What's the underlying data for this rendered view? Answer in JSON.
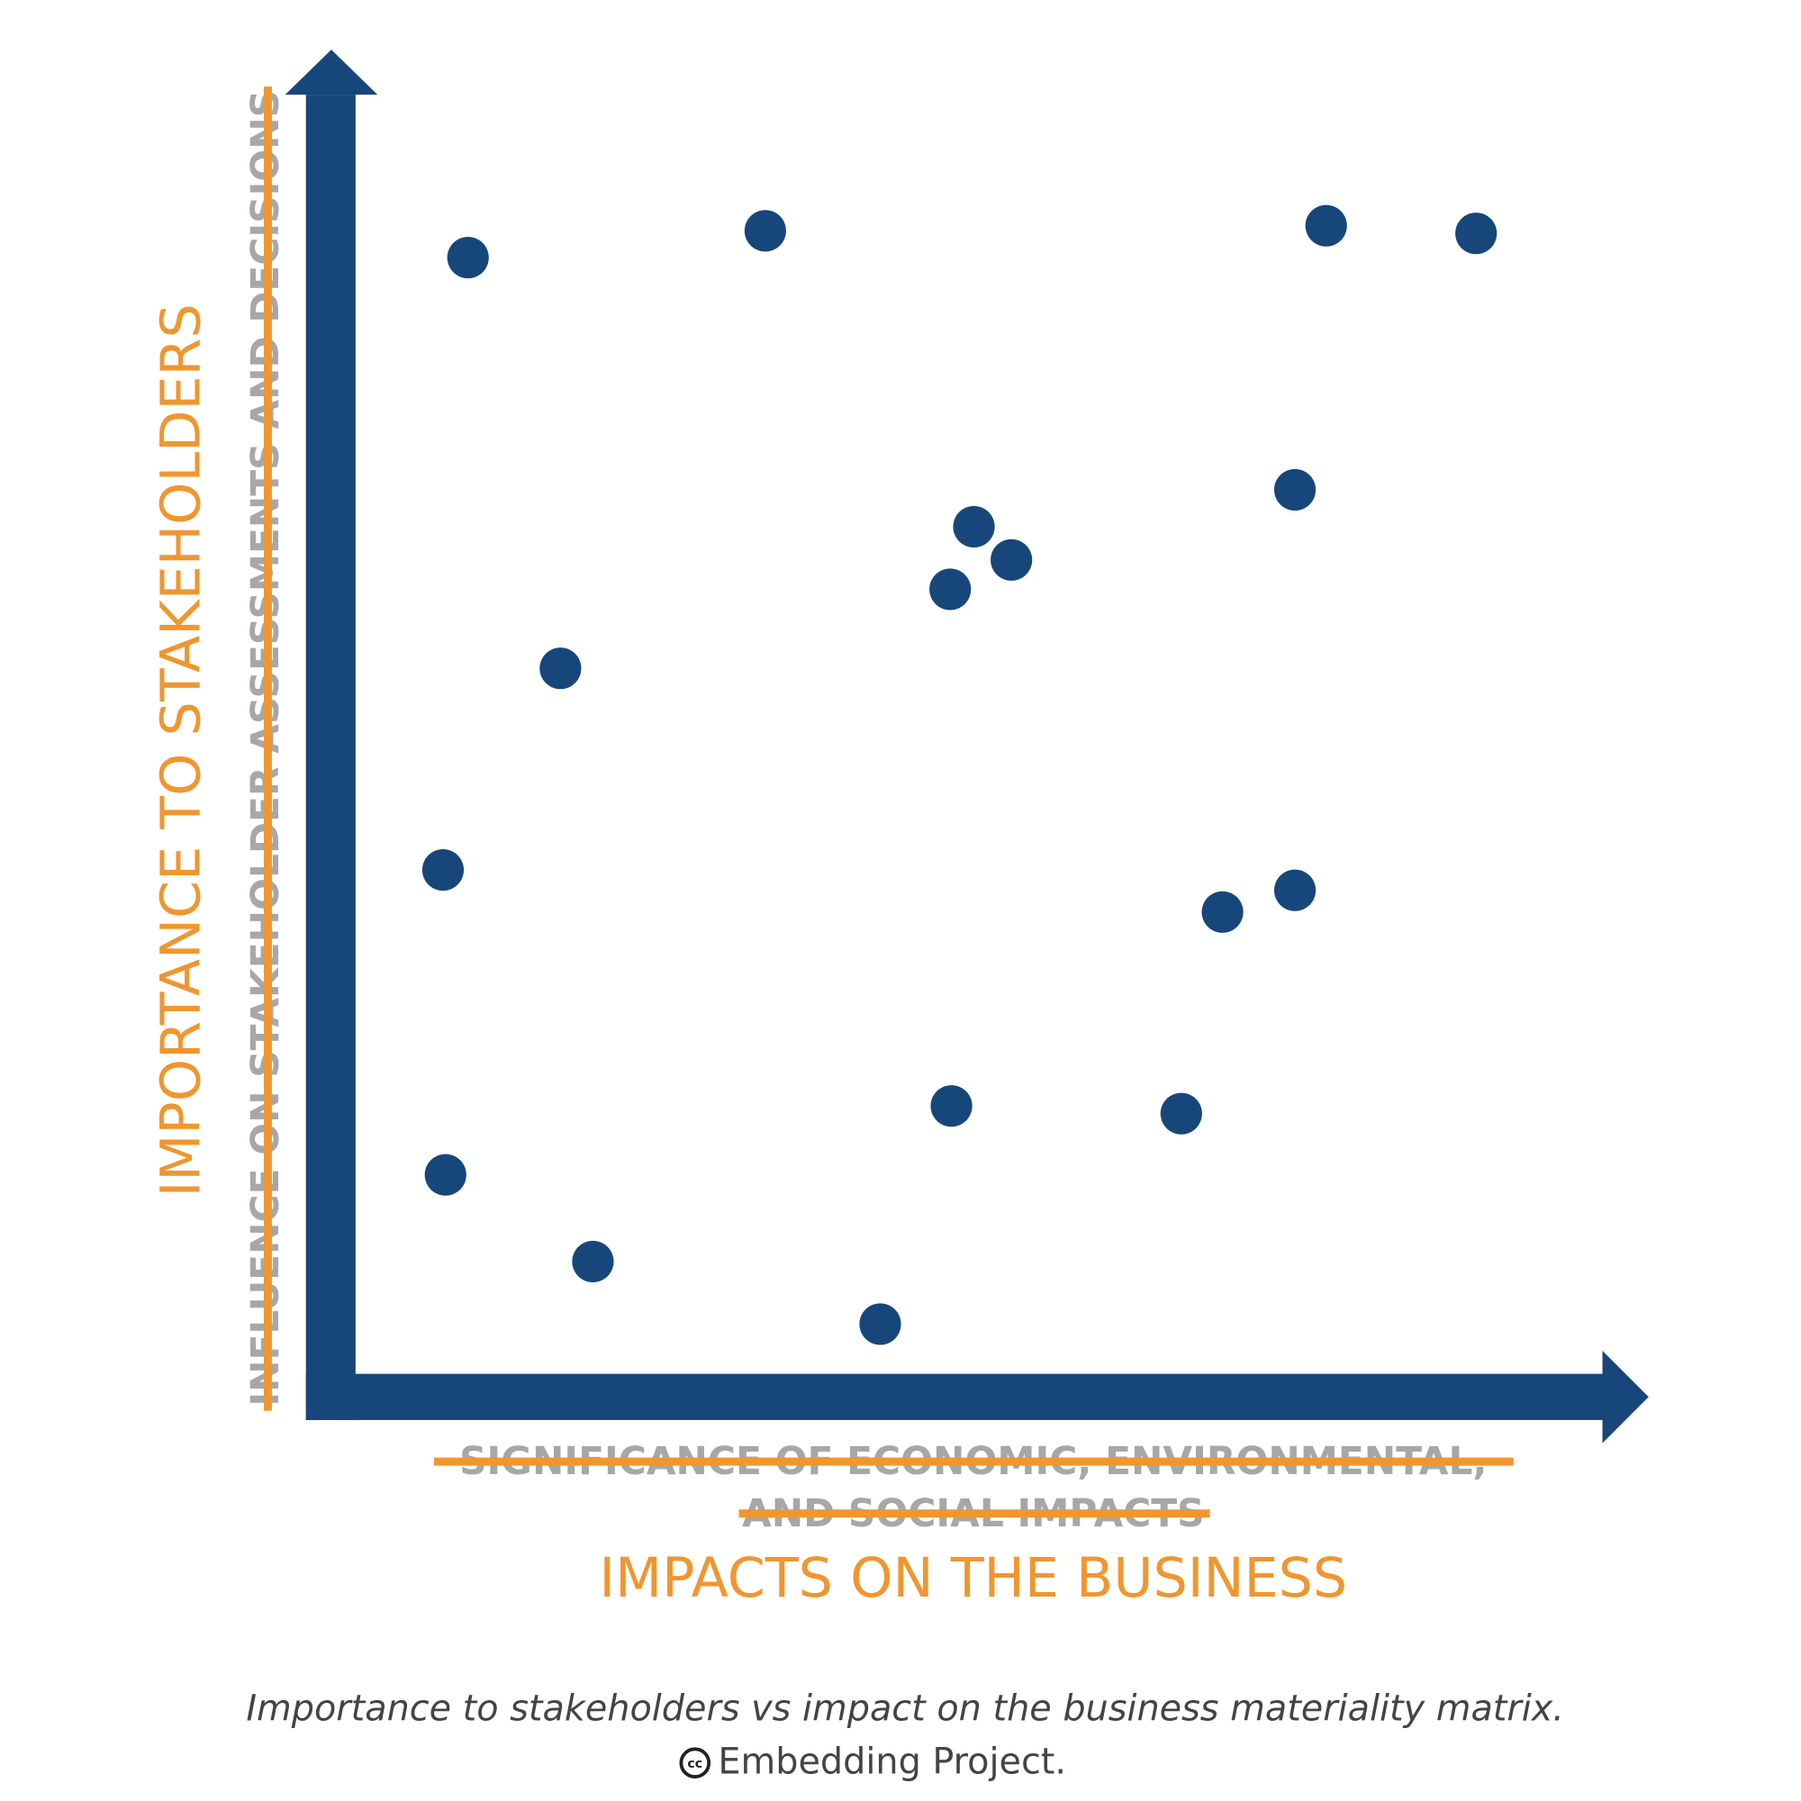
{
  "chart_data": {
    "type": "scatter",
    "y_label_struck": "INFLUENCE ON STAKEHOLDER ASSESSMENTS AND DECISIONS",
    "y_label": "IMPORTANCE TO STAKEHOLDERS",
    "x_label_struck": [
      "SIGNIFICANCE OF ECONOMIC, ENVIRONMENTAL,",
      "AND SOCIAL IMPACTS"
    ],
    "x_label": "IMPACTS ON THE BUSINESS",
    "caption": "Importance to stakeholders vs impact on the business materiality matrix.",
    "credit_icon": "cc",
    "credit": "Embedding Project.",
    "color": "#17477a",
    "xlim": [
      0,
      100
    ],
    "ylim": [
      0,
      100
    ],
    "x": [
      9.0,
      32.8,
      77.7,
      89.7,
      75.2,
      49.5,
      52.5,
      47.6,
      16.4,
      7.0,
      75.2,
      69.4,
      47.7,
      66.1,
      7.2,
      19.0,
      42.0
    ],
    "values": [
      87.5,
      89.6,
      90.0,
      89.4,
      69.3,
      66.4,
      63.8,
      61.5,
      55.3,
      39.5,
      37.9,
      36.2,
      21.0,
      20.4,
      15.6,
      8.8,
      3.9
    ]
  }
}
